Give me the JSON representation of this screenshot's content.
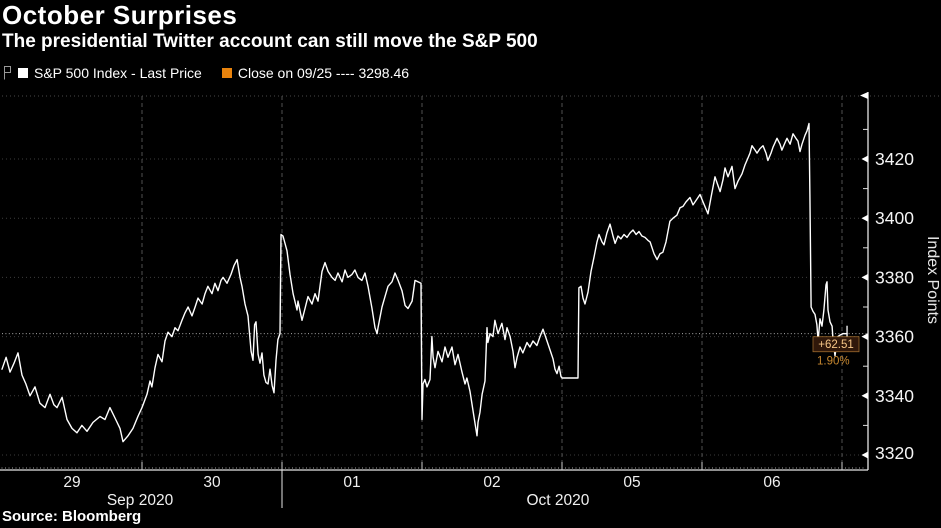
{
  "header": {
    "title": "October Surprises",
    "subtitle": "The presidential Twitter account can still move the S&P 500"
  },
  "legend": {
    "series_label": "S&P 500 Index - Last Price",
    "series_marker_color": "#ffffff",
    "reference_label": "Close on 09/25 ---- 3298.46",
    "reference_marker_color": "#e8830d"
  },
  "source": "Source: Bloomberg",
  "chart_data": {
    "type": "line",
    "title": "October Surprises",
    "subtitle": "The presidential Twitter account can still move the S&P 500",
    "ylabel": "Index Points",
    "xlabel": "",
    "grid": true,
    "legend_position": "top-left",
    "y_ticks": [
      3320,
      3340,
      3360,
      3380,
      3400,
      3420
    ],
    "ylim": [
      3316,
      3441
    ],
    "x_axis": {
      "day_labels": [
        "29",
        "30",
        "01",
        "02",
        "05",
        "06"
      ],
      "month_labels": [
        {
          "label": "Sep 2020",
          "t": 0.986
        },
        {
          "label": "Oct 2020",
          "t": 3.971
        }
      ],
      "month_separator_t": 2
    },
    "reference_line": {
      "label": "Close on 09/25",
      "value": 3298.46,
      "style": "dashed",
      "color": "#e8830d"
    },
    "last": {
      "price": 3360.97,
      "change": "+62.51",
      "change_pct": "1.90%",
      "color": "#c8882f"
    },
    "series": [
      {
        "name": "S&P 500 Index - Last Price",
        "color": "#ffffff",
        "points": [
          [
            0.0,
            3349
          ],
          [
            0.029,
            3353
          ],
          [
            0.057,
            3348
          ],
          [
            0.086,
            3351
          ],
          [
            0.114,
            3354.5
          ],
          [
            0.143,
            3347
          ],
          [
            0.171,
            3344
          ],
          [
            0.2,
            3340
          ],
          [
            0.236,
            3343
          ],
          [
            0.271,
            3337.5
          ],
          [
            0.307,
            3336
          ],
          [
            0.343,
            3340.5
          ],
          [
            0.371,
            3337
          ],
          [
            0.393,
            3336
          ],
          [
            0.429,
            3339.5
          ],
          [
            0.464,
            3332
          ],
          [
            0.5,
            3329
          ],
          [
            0.536,
            3327.5
          ],
          [
            0.571,
            3330
          ],
          [
            0.607,
            3328
          ],
          [
            0.65,
            3331
          ],
          [
            0.7,
            3333
          ],
          [
            0.736,
            3332
          ],
          [
            0.771,
            3336
          ],
          [
            0.807,
            3332.5
          ],
          [
            0.843,
            3329
          ],
          [
            0.864,
            3324.5
          ],
          [
            0.9,
            3326.5
          ],
          [
            0.936,
            3329
          ],
          [
            0.971,
            3333
          ],
          [
            1.0,
            3336
          ],
          [
            1.036,
            3340.5
          ],
          [
            1.057,
            3345
          ],
          [
            1.071,
            3343
          ],
          [
            1.093,
            3349.5
          ],
          [
            1.114,
            3354
          ],
          [
            1.143,
            3351.5
          ],
          [
            1.164,
            3358.5
          ],
          [
            1.186,
            3361.5
          ],
          [
            1.214,
            3360
          ],
          [
            1.236,
            3363
          ],
          [
            1.257,
            3362
          ],
          [
            1.286,
            3365.5
          ],
          [
            1.307,
            3368
          ],
          [
            1.329,
            3370
          ],
          [
            1.357,
            3367
          ],
          [
            1.379,
            3370
          ],
          [
            1.4,
            3373
          ],
          [
            1.429,
            3371
          ],
          [
            1.45,
            3374.5
          ],
          [
            1.471,
            3377
          ],
          [
            1.5,
            3374.5
          ],
          [
            1.521,
            3378
          ],
          [
            1.543,
            3375.5
          ],
          [
            1.564,
            3379
          ],
          [
            1.579,
            3380
          ],
          [
            1.607,
            3378
          ],
          [
            1.636,
            3381
          ],
          [
            1.657,
            3384
          ],
          [
            1.679,
            3386
          ],
          [
            1.7,
            3380
          ],
          [
            1.714,
            3377
          ],
          [
            1.736,
            3371
          ],
          [
            1.757,
            3367
          ],
          [
            1.779,
            3355
          ],
          [
            1.793,
            3352
          ],
          [
            1.804,
            3364
          ],
          [
            1.814,
            3365
          ],
          [
            1.829,
            3354
          ],
          [
            1.843,
            3351
          ],
          [
            1.857,
            3354.5
          ],
          [
            1.871,
            3347
          ],
          [
            1.886,
            3344.5
          ],
          [
            1.9,
            3344
          ],
          [
            1.914,
            3349
          ],
          [
            1.929,
            3343.5
          ],
          [
            1.943,
            3341
          ],
          [
            1.957,
            3352
          ],
          [
            1.971,
            3359
          ],
          [
            1.986,
            3361
          ],
          [
            1.993,
            3394.5
          ],
          [
            2.007,
            3394
          ],
          [
            2.036,
            3389
          ],
          [
            2.057,
            3381
          ],
          [
            2.079,
            3374.5
          ],
          [
            2.107,
            3369
          ],
          [
            2.114,
            3372
          ],
          [
            2.143,
            3365.5
          ],
          [
            2.164,
            3369.5
          ],
          [
            2.186,
            3373.5
          ],
          [
            2.214,
            3371
          ],
          [
            2.236,
            3374.5
          ],
          [
            2.257,
            3372
          ],
          [
            2.286,
            3382
          ],
          [
            2.307,
            3385
          ],
          [
            2.329,
            3382
          ],
          [
            2.357,
            3380
          ],
          [
            2.379,
            3379
          ],
          [
            2.4,
            3381.5
          ],
          [
            2.429,
            3378.5
          ],
          [
            2.45,
            3382.5
          ],
          [
            2.471,
            3380
          ],
          [
            2.5,
            3381
          ],
          [
            2.521,
            3382.5
          ],
          [
            2.543,
            3380
          ],
          [
            2.571,
            3379
          ],
          [
            2.593,
            3381.5
          ],
          [
            2.614,
            3377
          ],
          [
            2.643,
            3369.5
          ],
          [
            2.664,
            3363
          ],
          [
            2.679,
            3361
          ],
          [
            2.686,
            3363
          ],
          [
            2.714,
            3370
          ],
          [
            2.736,
            3373.5
          ],
          [
            2.757,
            3377
          ],
          [
            2.786,
            3378.5
          ],
          [
            2.807,
            3381.5
          ],
          [
            2.829,
            3379
          ],
          [
            2.857,
            3375.5
          ],
          [
            2.879,
            3370.5
          ],
          [
            2.9,
            3369.5
          ],
          [
            2.929,
            3372
          ],
          [
            2.95,
            3379
          ],
          [
            2.971,
            3378.5
          ],
          [
            2.993,
            3378
          ],
          [
            3.0,
            3332
          ],
          [
            3.007,
            3344
          ],
          [
            3.021,
            3345.5
          ],
          [
            3.036,
            3343
          ],
          [
            3.057,
            3345.5
          ],
          [
            3.071,
            3360
          ],
          [
            3.079,
            3353
          ],
          [
            3.093,
            3349.5
          ],
          [
            3.114,
            3355
          ],
          [
            3.143,
            3351.5
          ],
          [
            3.164,
            3356.5
          ],
          [
            3.186,
            3353
          ],
          [
            3.214,
            3356.5
          ],
          [
            3.236,
            3350.5
          ],
          [
            3.257,
            3354
          ],
          [
            3.286,
            3348
          ],
          [
            3.307,
            3344
          ],
          [
            3.321,
            3346
          ],
          [
            3.343,
            3341.5
          ],
          [
            3.364,
            3335
          ],
          [
            3.393,
            3326.5
          ],
          [
            3.4,
            3331
          ],
          [
            3.414,
            3334.5
          ],
          [
            3.429,
            3340.5
          ],
          [
            3.45,
            3345
          ],
          [
            3.464,
            3363
          ],
          [
            3.471,
            3358
          ],
          [
            3.486,
            3361
          ],
          [
            3.507,
            3360
          ],
          [
            3.521,
            3365.5
          ],
          [
            3.543,
            3361
          ],
          [
            3.571,
            3364.5
          ],
          [
            3.593,
            3359
          ],
          [
            3.607,
            3363
          ],
          [
            3.629,
            3360
          ],
          [
            3.65,
            3355
          ],
          [
            3.664,
            3349.5
          ],
          [
            3.679,
            3353
          ],
          [
            3.7,
            3356.5
          ],
          [
            3.721,
            3354.5
          ],
          [
            3.75,
            3358
          ],
          [
            3.771,
            3356.5
          ],
          [
            3.793,
            3358.5
          ],
          [
            3.821,
            3357
          ],
          [
            3.843,
            3360
          ],
          [
            3.864,
            3362.5
          ],
          [
            3.893,
            3358.5
          ],
          [
            3.914,
            3355.5
          ],
          [
            3.936,
            3352.5
          ],
          [
            3.95,
            3349
          ],
          [
            3.964,
            3347.5
          ],
          [
            3.979,
            3350
          ],
          [
            3.993,
            3346.5
          ],
          [
            4.0,
            3346
          ],
          [
            4.05,
            3346
          ],
          [
            4.1,
            3346
          ],
          [
            4.114,
            3346
          ],
          [
            4.121,
            3376.5
          ],
          [
            4.136,
            3377
          ],
          [
            4.15,
            3373
          ],
          [
            4.164,
            3371
          ],
          [
            4.186,
            3375
          ],
          [
            4.207,
            3382
          ],
          [
            4.229,
            3387
          ],
          [
            4.25,
            3392
          ],
          [
            4.264,
            3394.5
          ],
          [
            4.286,
            3392
          ],
          [
            4.3,
            3391
          ],
          [
            4.321,
            3395
          ],
          [
            4.343,
            3398
          ],
          [
            4.364,
            3394
          ],
          [
            4.379,
            3391.5
          ],
          [
            4.4,
            3394
          ],
          [
            4.421,
            3393
          ],
          [
            4.443,
            3394.5
          ],
          [
            4.464,
            3393.5
          ],
          [
            4.486,
            3395
          ],
          [
            4.507,
            3396
          ],
          [
            4.529,
            3394.5
          ],
          [
            4.55,
            3395.5
          ],
          [
            4.571,
            3394
          ],
          [
            4.593,
            3393.5
          ],
          [
            4.614,
            3392.5
          ],
          [
            4.629,
            3392
          ],
          [
            4.657,
            3388
          ],
          [
            4.679,
            3386
          ],
          [
            4.7,
            3388
          ],
          [
            4.721,
            3388.5
          ],
          [
            4.743,
            3392
          ],
          [
            4.771,
            3399
          ],
          [
            4.793,
            3400
          ],
          [
            4.821,
            3401
          ],
          [
            4.843,
            3403.5
          ],
          [
            4.864,
            3404
          ],
          [
            4.886,
            3405.5
          ],
          [
            4.914,
            3407
          ],
          [
            4.936,
            3404.5
          ],
          [
            4.964,
            3406.5
          ],
          [
            4.986,
            3408
          ],
          [
            5.007,
            3405.5
          ],
          [
            5.043,
            3401.5
          ],
          [
            5.064,
            3407
          ],
          [
            5.093,
            3414
          ],
          [
            5.114,
            3411
          ],
          [
            5.129,
            3409
          ],
          [
            5.15,
            3413
          ],
          [
            5.164,
            3417
          ],
          [
            5.186,
            3414
          ],
          [
            5.214,
            3417.5
          ],
          [
            5.236,
            3410
          ],
          [
            5.257,
            3412.5
          ],
          [
            5.286,
            3415
          ],
          [
            5.307,
            3418
          ],
          [
            5.321,
            3419.5
          ],
          [
            5.343,
            3422
          ],
          [
            5.357,
            3424.5
          ],
          [
            5.379,
            3423
          ],
          [
            5.393,
            3422
          ],
          [
            5.414,
            3423.5
          ],
          [
            5.436,
            3424.5
          ],
          [
            5.457,
            3422
          ],
          [
            5.471,
            3419.5
          ],
          [
            5.493,
            3422
          ],
          [
            5.507,
            3424
          ],
          [
            5.536,
            3427
          ],
          [
            5.557,
            3425
          ],
          [
            5.571,
            3423
          ],
          [
            5.593,
            3425.5
          ],
          [
            5.607,
            3427
          ],
          [
            5.629,
            3425
          ],
          [
            5.65,
            3428.5
          ],
          [
            5.671,
            3427
          ],
          [
            5.686,
            3426
          ],
          [
            5.7,
            3422.5
          ],
          [
            5.714,
            3425
          ],
          [
            5.736,
            3428
          ],
          [
            5.75,
            3429.5
          ],
          [
            5.764,
            3432
          ],
          [
            5.771,
            3408
          ],
          [
            5.779,
            3370
          ],
          [
            5.793,
            3368.5
          ],
          [
            5.807,
            3367.5
          ],
          [
            5.821,
            3364
          ],
          [
            5.829,
            3358.5
          ],
          [
            5.843,
            3366
          ],
          [
            5.857,
            3363.5
          ],
          [
            5.871,
            3369
          ],
          [
            5.886,
            3377.5
          ],
          [
            5.893,
            3378.5
          ],
          [
            5.9,
            3369
          ],
          [
            5.914,
            3365
          ],
          [
            5.929,
            3363.5
          ],
          [
            5.936,
            3359
          ],
          [
            5.95,
            3353.5
          ],
          [
            5.964,
            3358.5
          ],
          [
            5.971,
            3360
          ],
          [
            5.986,
            3360.5
          ],
          [
            6.007,
            3361
          ],
          [
            6.036,
            3360.97
          ]
        ]
      }
    ]
  }
}
